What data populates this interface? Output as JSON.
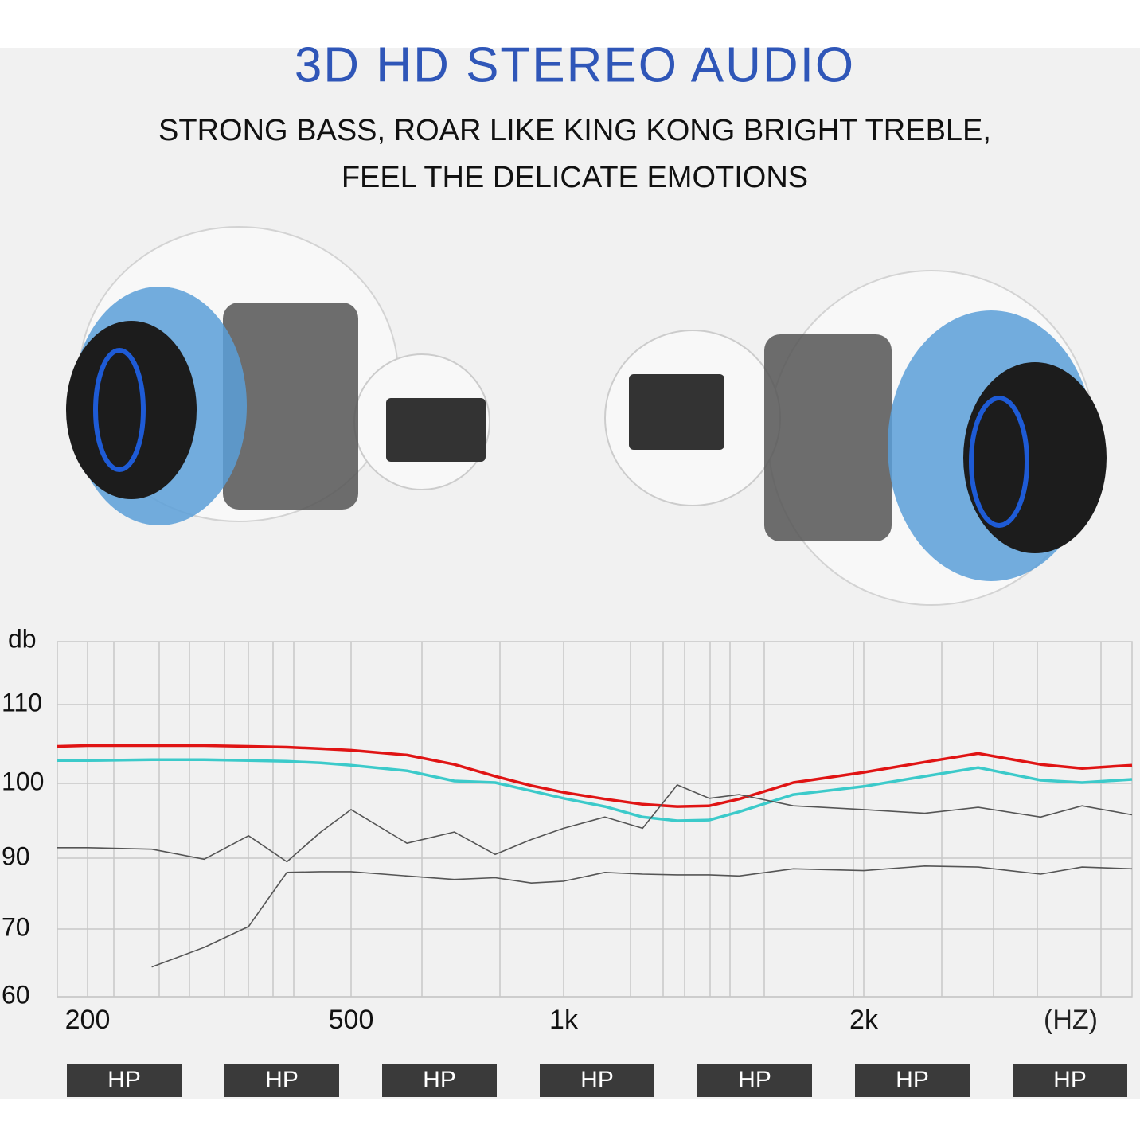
{
  "header": {
    "title": "3D HD STEREO AUDIO",
    "subtitle_lines": [
      "STRONG BASS, ROAR LIKE KING KONG BRIGHT TREBLE,",
      "FEEL THE DELICATE EMOTIONS"
    ]
  },
  "chart_data": {
    "type": "line",
    "y_label": "db",
    "x_label": "(HZ)",
    "log_x": true,
    "grid": true,
    "x": [
      180,
      200,
      250,
      300,
      350,
      400,
      450,
      500,
      600,
      700,
      800,
      900,
      1000,
      1100,
      1200,
      1300,
      1400,
      1500,
      1700,
      2000,
      2300,
      2600,
      3000,
      3300,
      3700
    ],
    "xlim": [
      180,
      3700
    ],
    "xticks": [
      200,
      500,
      {
        "value": 1000,
        "label": "1k"
      },
      {
        "value": 2000,
        "label": "2k"
      }
    ],
    "ylim": [
      60,
      118
    ],
    "yticks": [
      60,
      70,
      90,
      100,
      110
    ],
    "series": [
      {
        "color": "#e01414",
        "values": [
          104.7,
          104.8,
          104.8,
          104.8,
          104.7,
          104.6,
          104.4,
          104.2,
          103.6,
          102.4,
          100.9,
          99.7,
          98.8,
          97.9,
          97.2,
          96.9,
          97.0,
          97.9,
          100.1,
          101.4,
          102.7,
          103.8,
          102.4,
          101.9,
          102.3
        ]
      },
      {
        "color": "#3ccaca",
        "values": [
          102.9,
          102.9,
          103.0,
          103.0,
          102.9,
          102.8,
          102.6,
          102.3,
          101.6,
          100.3,
          100.1,
          99.0,
          98.0,
          96.9,
          95.5,
          95.0,
          95.1,
          96.2,
          98.5,
          99.6,
          100.9,
          102.0,
          100.4,
          100.1,
          100.5
        ]
      },
      {
        "color": "#555555",
        "values": [
          91.4,
          91.4,
          91.2,
          89.7,
          93.0,
          89.0,
          93.5,
          96.5,
          92.0,
          93.5,
          90.5,
          92.5,
          94.0,
          95.5,
          94.0,
          99.8,
          98.0,
          98.5,
          97.0,
          96.5,
          96.0,
          96.8,
          95.5,
          97.0,
          95.8
        ]
      },
      {
        "color": "#555555",
        "values": [
          null,
          null,
          64.4,
          67.3,
          70.7,
          86.0,
          86.2,
          86.2,
          85.0,
          84.0,
          84.5,
          83.0,
          83.5,
          86.0,
          85.5,
          85.3,
          85.3,
          85.0,
          87.0,
          86.5,
          87.8,
          87.5,
          85.5,
          87.5,
          87.0
        ]
      }
    ]
  },
  "footer": {
    "labels": [
      "HP",
      "HP",
      "HP",
      "HP",
      "HP",
      "HP",
      "HP"
    ]
  }
}
